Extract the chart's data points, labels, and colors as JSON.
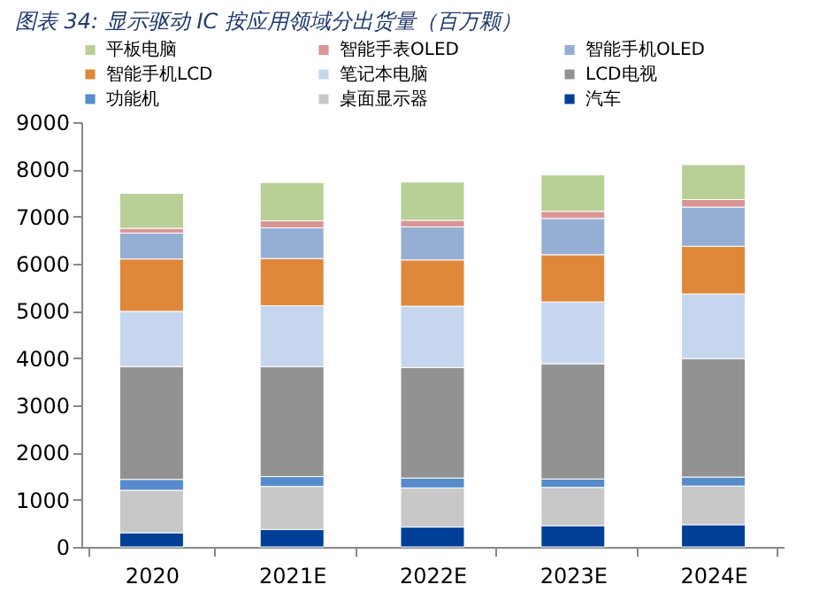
{
  "chart_data": {
    "type": "bar",
    "stacked": true,
    "title": "图表 34: 显示驱动 IC 按应用领域分出货量（百万颗）",
    "categories": [
      "2020",
      "2021E",
      "2022E",
      "2023E",
      "2024E"
    ],
    "series": [
      {
        "name": "汽车",
        "color": "#003f98",
        "values": [
          300,
          370,
          420,
          450,
          470
        ]
      },
      {
        "name": "桌面显示器",
        "color": "#c8c8c8",
        "values": [
          900,
          910,
          830,
          810,
          820
        ]
      },
      {
        "name": "功能机",
        "color": "#568bcc",
        "values": [
          230,
          210,
          210,
          180,
          190
        ]
      },
      {
        "name": "LCD电视",
        "color": "#929292",
        "values": [
          2390,
          2330,
          2340,
          2440,
          2510
        ]
      },
      {
        "name": "笔记本电脑",
        "color": "#c5d6ee",
        "values": [
          1170,
          1290,
          1300,
          1310,
          1370
        ]
      },
      {
        "name": "智能手机LCD",
        "color": "#e0883a",
        "values": [
          1110,
          1000,
          980,
          1000,
          1010
        ]
      },
      {
        "name": "智能手机OLED",
        "color": "#95aed3",
        "values": [
          550,
          650,
          700,
          770,
          830
        ]
      },
      {
        "name": "智能手表OLED",
        "color": "#d99594",
        "values": [
          100,
          150,
          140,
          150,
          160
        ]
      },
      {
        "name": "平板电脑",
        "color": "#b8cf96",
        "values": [
          740,
          810,
          810,
          770,
          740
        ]
      }
    ],
    "ylim": [
      0,
      9000
    ],
    "yticks": [
      0,
      1000,
      2000,
      3000,
      4000,
      5000,
      6000,
      7000,
      8000,
      9000
    ],
    "grid": false,
    "legend": "top"
  }
}
